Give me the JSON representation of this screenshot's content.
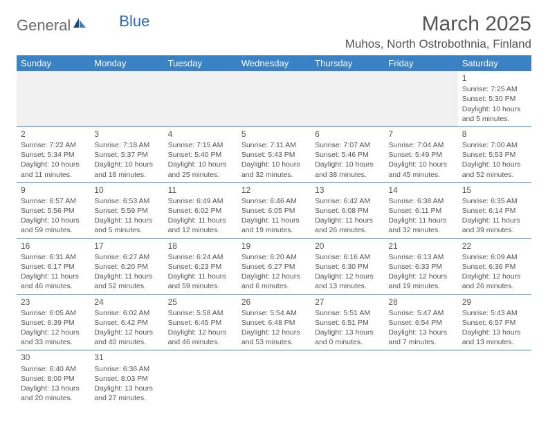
{
  "logo": {
    "word1": "General",
    "word2": "Blue"
  },
  "title": "March 2025",
  "location": "Muhos, North Ostrobothnia, Finland",
  "colors": {
    "header_bg": "#3a82c4",
    "header_fg": "#ffffff",
    "border": "#3a82c4",
    "text": "#555555",
    "blank_bg": "#f0f0f0"
  },
  "daynames": [
    "Sunday",
    "Monday",
    "Tuesday",
    "Wednesday",
    "Thursday",
    "Friday",
    "Saturday"
  ],
  "weeks": [
    [
      null,
      null,
      null,
      null,
      null,
      null,
      {
        "n": "1",
        "sr": "Sunrise: 7:25 AM",
        "ss": "Sunset: 5:30 PM",
        "dl1": "Daylight: 10 hours",
        "dl2": "and 5 minutes."
      }
    ],
    [
      {
        "n": "2",
        "sr": "Sunrise: 7:22 AM",
        "ss": "Sunset: 5:34 PM",
        "dl1": "Daylight: 10 hours",
        "dl2": "and 11 minutes."
      },
      {
        "n": "3",
        "sr": "Sunrise: 7:18 AM",
        "ss": "Sunset: 5:37 PM",
        "dl1": "Daylight: 10 hours",
        "dl2": "and 18 minutes."
      },
      {
        "n": "4",
        "sr": "Sunrise: 7:15 AM",
        "ss": "Sunset: 5:40 PM",
        "dl1": "Daylight: 10 hours",
        "dl2": "and 25 minutes."
      },
      {
        "n": "5",
        "sr": "Sunrise: 7:11 AM",
        "ss": "Sunset: 5:43 PM",
        "dl1": "Daylight: 10 hours",
        "dl2": "and 32 minutes."
      },
      {
        "n": "6",
        "sr": "Sunrise: 7:07 AM",
        "ss": "Sunset: 5:46 PM",
        "dl1": "Daylight: 10 hours",
        "dl2": "and 38 minutes."
      },
      {
        "n": "7",
        "sr": "Sunrise: 7:04 AM",
        "ss": "Sunset: 5:49 PM",
        "dl1": "Daylight: 10 hours",
        "dl2": "and 45 minutes."
      },
      {
        "n": "8",
        "sr": "Sunrise: 7:00 AM",
        "ss": "Sunset: 5:53 PM",
        "dl1": "Daylight: 10 hours",
        "dl2": "and 52 minutes."
      }
    ],
    [
      {
        "n": "9",
        "sr": "Sunrise: 6:57 AM",
        "ss": "Sunset: 5:56 PM",
        "dl1": "Daylight: 10 hours",
        "dl2": "and 59 minutes."
      },
      {
        "n": "10",
        "sr": "Sunrise: 6:53 AM",
        "ss": "Sunset: 5:59 PM",
        "dl1": "Daylight: 11 hours",
        "dl2": "and 5 minutes."
      },
      {
        "n": "11",
        "sr": "Sunrise: 6:49 AM",
        "ss": "Sunset: 6:02 PM",
        "dl1": "Daylight: 11 hours",
        "dl2": "and 12 minutes."
      },
      {
        "n": "12",
        "sr": "Sunrise: 6:46 AM",
        "ss": "Sunset: 6:05 PM",
        "dl1": "Daylight: 11 hours",
        "dl2": "and 19 minutes."
      },
      {
        "n": "13",
        "sr": "Sunrise: 6:42 AM",
        "ss": "Sunset: 6:08 PM",
        "dl1": "Daylight: 11 hours",
        "dl2": "and 26 minutes."
      },
      {
        "n": "14",
        "sr": "Sunrise: 6:38 AM",
        "ss": "Sunset: 6:11 PM",
        "dl1": "Daylight: 11 hours",
        "dl2": "and 32 minutes."
      },
      {
        "n": "15",
        "sr": "Sunrise: 6:35 AM",
        "ss": "Sunset: 6:14 PM",
        "dl1": "Daylight: 11 hours",
        "dl2": "and 39 minutes."
      }
    ],
    [
      {
        "n": "16",
        "sr": "Sunrise: 6:31 AM",
        "ss": "Sunset: 6:17 PM",
        "dl1": "Daylight: 11 hours",
        "dl2": "and 46 minutes."
      },
      {
        "n": "17",
        "sr": "Sunrise: 6:27 AM",
        "ss": "Sunset: 6:20 PM",
        "dl1": "Daylight: 11 hours",
        "dl2": "and 52 minutes."
      },
      {
        "n": "18",
        "sr": "Sunrise: 6:24 AM",
        "ss": "Sunset: 6:23 PM",
        "dl1": "Daylight: 11 hours",
        "dl2": "and 59 minutes."
      },
      {
        "n": "19",
        "sr": "Sunrise: 6:20 AM",
        "ss": "Sunset: 6:27 PM",
        "dl1": "Daylight: 12 hours",
        "dl2": "and 6 minutes."
      },
      {
        "n": "20",
        "sr": "Sunrise: 6:16 AM",
        "ss": "Sunset: 6:30 PM",
        "dl1": "Daylight: 12 hours",
        "dl2": "and 13 minutes."
      },
      {
        "n": "21",
        "sr": "Sunrise: 6:13 AM",
        "ss": "Sunset: 6:33 PM",
        "dl1": "Daylight: 12 hours",
        "dl2": "and 19 minutes."
      },
      {
        "n": "22",
        "sr": "Sunrise: 6:09 AM",
        "ss": "Sunset: 6:36 PM",
        "dl1": "Daylight: 12 hours",
        "dl2": "and 26 minutes."
      }
    ],
    [
      {
        "n": "23",
        "sr": "Sunrise: 6:05 AM",
        "ss": "Sunset: 6:39 PM",
        "dl1": "Daylight: 12 hours",
        "dl2": "and 33 minutes."
      },
      {
        "n": "24",
        "sr": "Sunrise: 6:02 AM",
        "ss": "Sunset: 6:42 PM",
        "dl1": "Daylight: 12 hours",
        "dl2": "and 40 minutes."
      },
      {
        "n": "25",
        "sr": "Sunrise: 5:58 AM",
        "ss": "Sunset: 6:45 PM",
        "dl1": "Daylight: 12 hours",
        "dl2": "and 46 minutes."
      },
      {
        "n": "26",
        "sr": "Sunrise: 5:54 AM",
        "ss": "Sunset: 6:48 PM",
        "dl1": "Daylight: 12 hours",
        "dl2": "and 53 minutes."
      },
      {
        "n": "27",
        "sr": "Sunrise: 5:51 AM",
        "ss": "Sunset: 6:51 PM",
        "dl1": "Daylight: 13 hours",
        "dl2": "and 0 minutes."
      },
      {
        "n": "28",
        "sr": "Sunrise: 5:47 AM",
        "ss": "Sunset: 6:54 PM",
        "dl1": "Daylight: 13 hours",
        "dl2": "and 7 minutes."
      },
      {
        "n": "29",
        "sr": "Sunrise: 5:43 AM",
        "ss": "Sunset: 6:57 PM",
        "dl1": "Daylight: 13 hours",
        "dl2": "and 13 minutes."
      }
    ],
    [
      {
        "n": "30",
        "sr": "Sunrise: 6:40 AM",
        "ss": "Sunset: 8:00 PM",
        "dl1": "Daylight: 13 hours",
        "dl2": "and 20 minutes."
      },
      {
        "n": "31",
        "sr": "Sunrise: 6:36 AM",
        "ss": "Sunset: 8:03 PM",
        "dl1": "Daylight: 13 hours",
        "dl2": "and 27 minutes."
      },
      null,
      null,
      null,
      null,
      null
    ]
  ]
}
